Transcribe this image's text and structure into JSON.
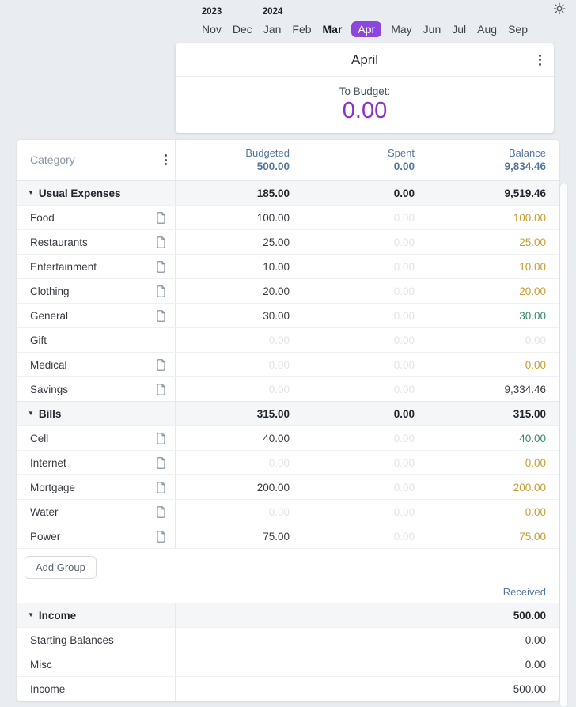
{
  "app": {
    "theme_toggle_icon": "sun-icon",
    "accent_purple": "#8b46dd",
    "amount_purple": "#8c2ed0",
    "gold": "#c59d2f",
    "green": "#37876c",
    "header_slate": "#54769c"
  },
  "month_selector": {
    "years": [
      {
        "label": "2023",
        "month_index": 0
      },
      {
        "label": "2024",
        "month_index": 2
      }
    ],
    "months": [
      {
        "label": "Nov"
      },
      {
        "label": "Dec"
      },
      {
        "label": "Jan"
      },
      {
        "label": "Feb"
      },
      {
        "label": "Mar",
        "current": true
      },
      {
        "label": "Apr",
        "selected": true
      },
      {
        "label": "May"
      },
      {
        "label": "Jun"
      },
      {
        "label": "Jul"
      },
      {
        "label": "Aug"
      },
      {
        "label": "Sep"
      }
    ]
  },
  "summary_card": {
    "title": "April",
    "to_budget_label": "To Budget:",
    "to_budget_value": "0.00"
  },
  "table": {
    "category_header": "Category",
    "columns": [
      {
        "label": "Budgeted",
        "total": "500.00"
      },
      {
        "label": "Spent",
        "total": "0.00"
      },
      {
        "label": "Balance",
        "total": "9,834.46"
      }
    ],
    "groups": [
      {
        "name": "Usual Expenses",
        "budgeted": "185.00",
        "spent": "0.00",
        "balance": "9,519.46",
        "rows": [
          {
            "name": "Food",
            "note": true,
            "budgeted": "100.00",
            "budgeted_style": "dark",
            "spent": "0.00",
            "spent_style": "faint",
            "balance": "100.00",
            "balance_style": "gold"
          },
          {
            "name": "Restaurants",
            "note": true,
            "budgeted": "25.00",
            "budgeted_style": "dark",
            "spent": "0.00",
            "spent_style": "faint",
            "balance": "25.00",
            "balance_style": "gold"
          },
          {
            "name": "Entertainment",
            "note": true,
            "budgeted": "10.00",
            "budgeted_style": "dark",
            "spent": "0.00",
            "spent_style": "faint",
            "balance": "10.00",
            "balance_style": "gold"
          },
          {
            "name": "Clothing",
            "note": true,
            "budgeted": "20.00",
            "budgeted_style": "dark",
            "spent": "0.00",
            "spent_style": "faint",
            "balance": "20.00",
            "balance_style": "gold"
          },
          {
            "name": "General",
            "note": true,
            "budgeted": "30.00",
            "budgeted_style": "dark",
            "spent": "0.00",
            "spent_style": "faint",
            "balance": "30.00",
            "balance_style": "green"
          },
          {
            "name": "Gift",
            "note": false,
            "budgeted": "0.00",
            "budgeted_style": "faint",
            "spent": "0.00",
            "spent_style": "faint",
            "balance": "0.00",
            "balance_style": "faint"
          },
          {
            "name": "Medical",
            "note": true,
            "budgeted": "0.00",
            "budgeted_style": "faint",
            "spent": "0.00",
            "spent_style": "faint",
            "balance": "0.00",
            "balance_style": "gold"
          },
          {
            "name": "Savings",
            "note": true,
            "budgeted": "0.00",
            "budgeted_style": "faint",
            "spent": "0.00",
            "spent_style": "faint",
            "balance": "9,334.46",
            "balance_style": "dark"
          }
        ]
      },
      {
        "name": "Bills",
        "budgeted": "315.00",
        "spent": "0.00",
        "balance": "315.00",
        "rows": [
          {
            "name": "Cell",
            "note": true,
            "budgeted": "40.00",
            "budgeted_style": "dark",
            "spent": "0.00",
            "spent_style": "faint",
            "balance": "40.00",
            "balance_style": "green"
          },
          {
            "name": "Internet",
            "note": true,
            "budgeted": "0.00",
            "budgeted_style": "faint",
            "spent": "0.00",
            "spent_style": "faint",
            "balance": "0.00",
            "balance_style": "gold"
          },
          {
            "name": "Mortgage",
            "note": true,
            "budgeted": "200.00",
            "budgeted_style": "dark",
            "spent": "0.00",
            "spent_style": "faint",
            "balance": "200.00",
            "balance_style": "gold"
          },
          {
            "name": "Water",
            "note": true,
            "budgeted": "0.00",
            "budgeted_style": "faint",
            "spent": "0.00",
            "spent_style": "faint",
            "balance": "0.00",
            "balance_style": "gold"
          },
          {
            "name": "Power",
            "note": true,
            "budgeted": "75.00",
            "budgeted_style": "dark",
            "spent": "0.00",
            "spent_style": "faint",
            "balance": "75.00",
            "balance_style": "gold"
          }
        ]
      }
    ],
    "add_group_label": "Add Group",
    "received_label": "Received",
    "income": {
      "name": "Income",
      "total": "500.00",
      "rows": [
        {
          "name": "Starting Balances",
          "value": "0.00"
        },
        {
          "name": "Misc",
          "value": "0.00"
        },
        {
          "name": "Income",
          "value": "500.00"
        }
      ]
    }
  }
}
